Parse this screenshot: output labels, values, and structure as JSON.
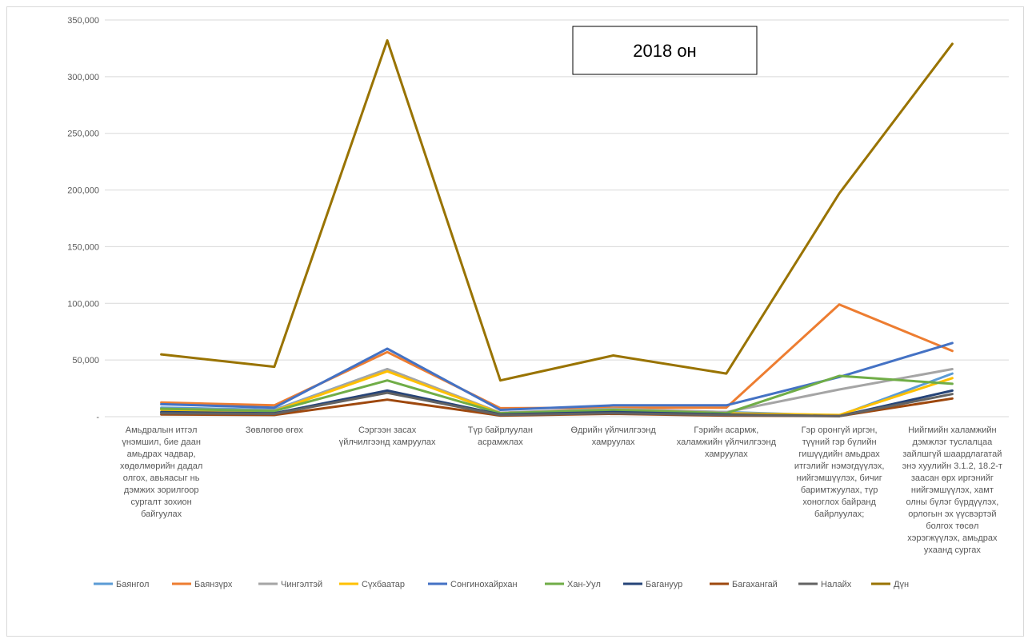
{
  "chart_data": {
    "type": "line",
    "title": "2018 он",
    "ylim": [
      0,
      350000
    ],
    "y_ticks": [
      "-",
      "50,000",
      "100,000",
      "150,000",
      "200,000",
      "250,000",
      "300,000",
      "350,000"
    ],
    "grid": "horizontal",
    "legend": "bottom",
    "categories": [
      "Амьдралын итгэл үнэмшил, бие даан амьдрах чадвар, хөдөлмөрийн дадал олгох, авьяасыг нь дэмжих зорилгоор сургалт зохион байгуулах",
      "Зөвлөгөө өгөх",
      "Сэргээн засах үйлчилгээнд хамруулах",
      "Түр байрлуулан асрамжлах",
      "Өдрийн үйлчилгээнд хамруулах",
      "Гэрийн асармж, халамжийн үйлчилгээнд хамруулах",
      "Гэр оронгүй иргэн, түүний гэр бүлийн гишүүдийн амьдрах итгэлийг нэмэгдүүлэх, нийгэмшүүлэх, бичиг баримтжуулах, түр хоноглох байранд байрлуулах;",
      "Нийгмийн халамжийн дэмжлэг туслалцаа зайлшгүй шаардлагатай энэ хуулийн 3.1.2, 18.2-т заасан өрх иргэнийг нийгэмшүүлэх, хамт олны бүлэг бүрдүүлэх, орлогын эх үүсвэртэй болгох төсөл хэрэгжүүлэх, амьдрах ухаанд сургах"
    ],
    "category_lines": [
      [
        "Амьдралын итгэл",
        "үнэмшил, бие даан",
        "амьдрах чадвар,",
        "хөдөлмөрийн дадал",
        "олгох, авьяасыг нь",
        "дэмжих зорилгоор",
        "сургалт зохион",
        "байгуулах"
      ],
      [
        "Зөвлөгөө өгөх"
      ],
      [
        "Сэргээн  засах",
        "үйлчилгээнд хамруулах"
      ],
      [
        "Түр байрлуулан",
        "асрамжлах"
      ],
      [
        "Өдрийн үйлчилгээнд",
        "хамруулах"
      ],
      [
        "Гэрийн асармж,",
        "халамжийн үйлчилгээнд",
        "хамруулах"
      ],
      [
        "Гэр оронгүй иргэн,",
        "түүний гэр бүлийн",
        "гишүүдийн амьдрах",
        "итгэлийг нэмэгдүүлэх,",
        "нийгэмшүүлэх, бичиг",
        "баримтжуулах, түр",
        "хоноглох байранд",
        "байрлуулах;"
      ],
      [
        "Нийгмийн халамжийн",
        "дэмжлэг туслалцаа",
        "зайлшгүй шаардлагатай",
        "энэ хуулийн 3.1.2, 18.2-т",
        "заасан өрх иргэнийг",
        "нийгэмшүүлэх, хамт",
        "олны бүлэг бүрдүүлэх,",
        "орлогын эх үүсвэртэй",
        "болгох төсөл",
        "хэрэгжүүлэх, амьдрах",
        "ухаанд сургах"
      ]
    ],
    "series": [
      {
        "name": "Баянгол",
        "color": "#5B9BD5",
        "values": [
          8000,
          6000,
          42000,
          3000,
          6000,
          4000,
          1000,
          38000
        ]
      },
      {
        "name": "Баянзүрх",
        "color": "#ED7D31",
        "values": [
          12500,
          10000,
          57000,
          7500,
          8000,
          8000,
          99000,
          58000
        ]
      },
      {
        "name": "Чингэлтэй",
        "color": "#A5A5A5",
        "values": [
          7000,
          5500,
          42000,
          3500,
          7000,
          4000,
          24000,
          42000
        ]
      },
      {
        "name": "Сүхбаатар",
        "color": "#FFC000",
        "values": [
          6000,
          5000,
          40000,
          3000,
          6000,
          3000,
          1500,
          34000
        ]
      },
      {
        "name": "Сонгинохайрхан",
        "color": "#4472C4",
        "values": [
          11000,
          8000,
          60000,
          6000,
          10000,
          10000,
          35000,
          65000
        ]
      },
      {
        "name": "Хан-Уул",
        "color": "#70AD47",
        "values": [
          7000,
          5000,
          32000,
          3000,
          6000,
          3000,
          36000,
          29000
        ]
      },
      {
        "name": "Багануур",
        "color": "#264478",
        "values": [
          4000,
          3000,
          23000,
          2000,
          4000,
          2000,
          500,
          23000
        ]
      },
      {
        "name": "Багахангай",
        "color": "#9E480E",
        "values": [
          2000,
          1500,
          15000,
          1000,
          2500,
          1000,
          500,
          16000
        ]
      },
      {
        "name": "Налайх",
        "color": "#636363",
        "values": [
          3000,
          2500,
          21000,
          1500,
          3000,
          1500,
          500,
          20000
        ]
      },
      {
        "name": "Дүн",
        "color": "#997300",
        "values": [
          55000,
          44000,
          332000,
          32000,
          54000,
          38000,
          197000,
          329000
        ]
      }
    ]
  }
}
